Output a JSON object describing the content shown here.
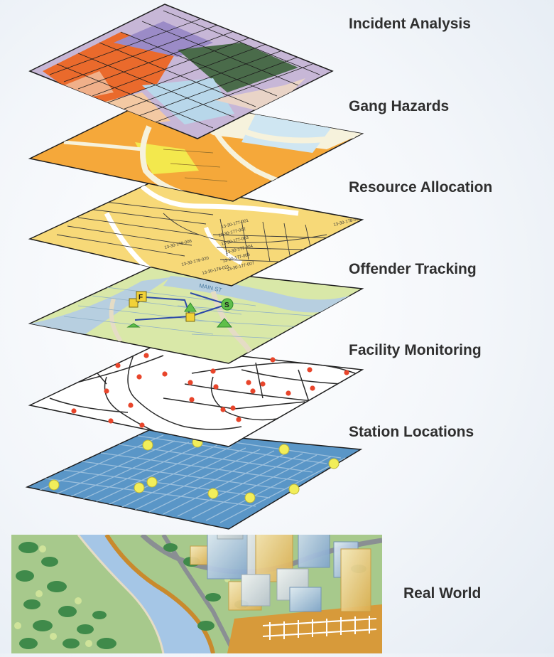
{
  "layers": [
    {
      "label": "Incident Analysis"
    },
    {
      "label": "Gang Hazards"
    },
    {
      "label": "Resource Allocation"
    },
    {
      "label": "Offender Tracking"
    },
    {
      "label": "Facility Monitoring"
    },
    {
      "label": "Station Locations"
    }
  ],
  "base": {
    "label": "Real World"
  },
  "parcel_ids": [
    "13-30-177-001",
    "13-30-177-002",
    "13-30-177-003",
    "13-30-177-004",
    "13-30-177-006",
    "13-30-177-007",
    "13-30-178-004",
    "13-30-178-006",
    "13-30-179-020",
    "13-30-178-021",
    "13-30-17"
  ],
  "tracking_markers": [
    "F",
    "S"
  ],
  "street_label": "MAIN ST",
  "colors": {
    "label_text": "#2f2f2f",
    "incident_orange": "#ea6a2c",
    "hazard_orange": "#f5a83a",
    "hazard_yellow": "#f3e84d",
    "allocation_yellow": "#f7d978",
    "tracking_green": "#d9e8a8",
    "tracking_river": "#b7cfe0",
    "facility_node": "#e8452b",
    "station_blue": "#5a96c7",
    "station_point": "#f2ee5a",
    "river": "#a5c6e6",
    "land": "#a7c98c"
  }
}
